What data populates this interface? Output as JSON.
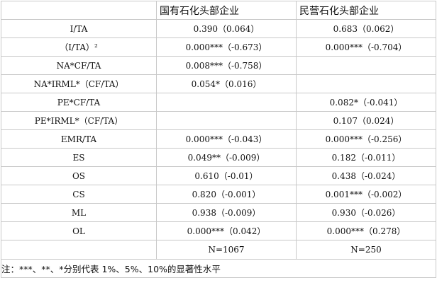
{
  "columns": {
    "state": "国有石化头部企业",
    "private": "民营石化头部企业"
  },
  "rows": [
    {
      "var": "I/TA",
      "state": "0.390（0.064）",
      "private": "0.683（0.062）"
    },
    {
      "var": "（I/TA）²",
      "state": "0.000***（-0.673）",
      "private": "0.000***（-0.704）"
    },
    {
      "var": "NA*CF/TA",
      "state": "0.008***（-0.758）",
      "private": ""
    },
    {
      "var": "NA*IRML*（CF/TA）",
      "state": "0.054*（0.016）",
      "private": ""
    },
    {
      "var": "PE*CF/TA",
      "state": "",
      "private": "0.082*（-0.041）"
    },
    {
      "var": "PE*IRML*（CF/TA）",
      "state": "",
      "private": "0.107（0.024）"
    },
    {
      "var": "EMR/TA",
      "state": "0.000***（-0.043）",
      "private": "0.000***（-0.256）"
    },
    {
      "var": "ES",
      "state": "0.049**（-0.009）",
      "private": "0.182（-0.011）"
    },
    {
      "var": "OS",
      "state": "0.610（-0.01）",
      "private": "0.438（-0.024）"
    },
    {
      "var": "CS",
      "state": "0.820（-0.001）",
      "private": "0.001***（-0.002）"
    },
    {
      "var": "ML",
      "state": "0.938（-0.009）",
      "private": "0.930（-0.026）"
    },
    {
      "var": "OL",
      "state": "0.000***（0.042）",
      "private": "0.000***（0.278）"
    }
  ],
  "sample": {
    "state": "N=1067",
    "private": "N=250"
  },
  "note": "注：***、**、*分别代表 1%、5%、10%的显著性水平"
}
